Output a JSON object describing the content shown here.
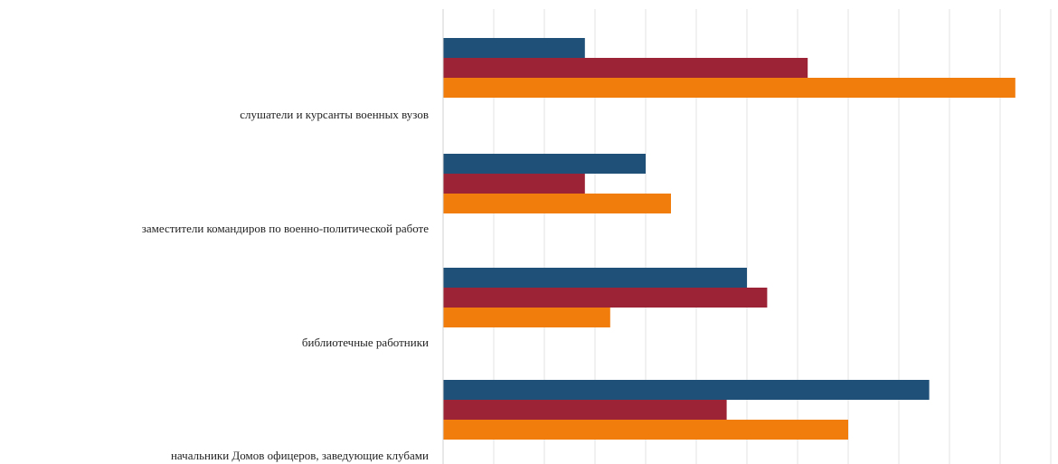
{
  "chart_data": {
    "type": "bar",
    "orientation": "horizontal",
    "categories": [
      "слушатели  и курсанты  военных вузов",
      "заместители командиров по военно-политической работе",
      "библиотечные работники",
      "начальники Домов офицеров, заведующие  клубами"
    ],
    "series": [
      {
        "color": "#1f5077",
        "values": [
          14,
          20,
          30,
          48
        ]
      },
      {
        "color": "#9b2335",
        "values": [
          36,
          14,
          32,
          28
        ]
      },
      {
        "color": "#f07d0c",
        "values": [
          56.5,
          22.5,
          16.5,
          40
        ]
      }
    ],
    "xlim": [
      0,
      60
    ],
    "grid": true,
    "legend": "none"
  }
}
